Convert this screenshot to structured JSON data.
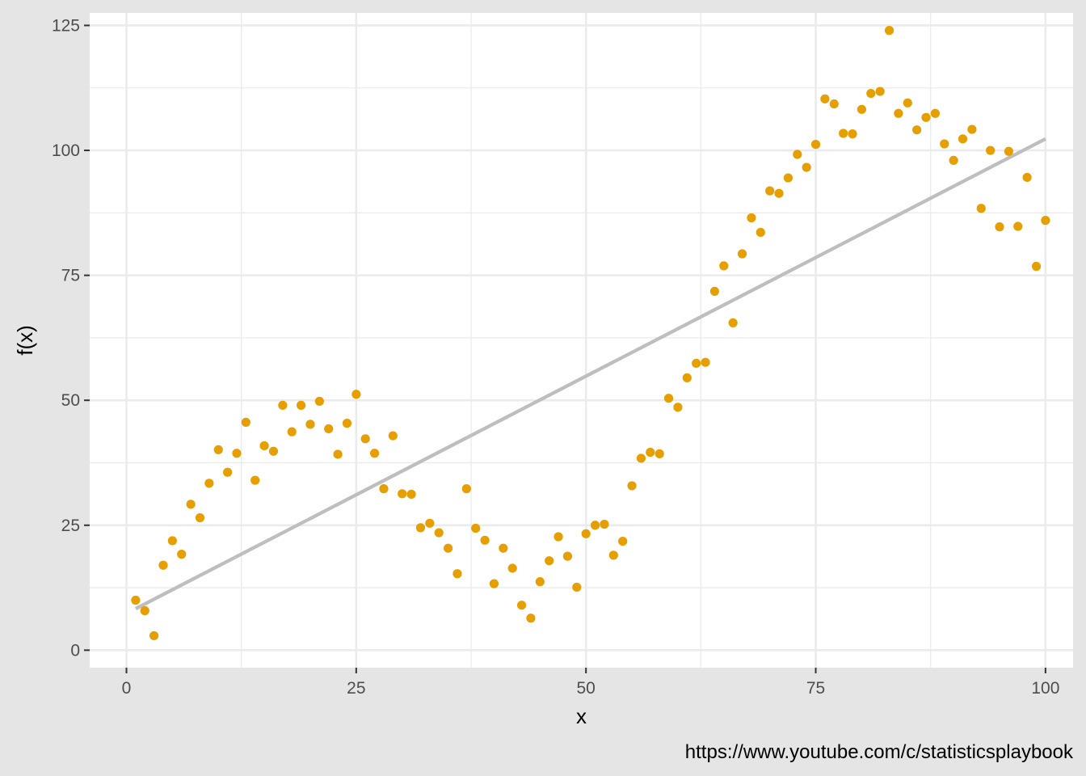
{
  "chart_data": {
    "type": "scatter",
    "title": "",
    "xlabel": "x",
    "ylabel": "f(x)",
    "caption": "https://www.youtube.com/c/statisticsplaybook",
    "xlim": [
      -4,
      103
    ],
    "ylim": [
      -3.5,
      127.5
    ],
    "x_ticks": [
      0,
      25,
      50,
      75,
      100
    ],
    "y_ticks": [
      0,
      25,
      50,
      75,
      100,
      125
    ],
    "grid": true,
    "legend": "none",
    "colors": {
      "points": "#e69f00",
      "fit_line": "#bebebe",
      "panel": "#ffffff",
      "grid": "#ebebeb",
      "background": "#e5e5e5"
    },
    "series": [
      {
        "type": "scatter",
        "x": [
          1,
          2,
          3,
          4,
          5,
          6,
          7,
          8,
          9,
          10,
          11,
          12,
          13,
          14,
          15,
          16,
          17,
          18,
          19,
          20,
          21,
          22,
          23,
          24,
          25,
          26,
          27,
          28,
          29,
          30,
          31,
          32,
          33,
          34,
          35,
          36,
          37,
          38,
          39,
          40,
          41,
          42,
          43,
          44,
          45,
          46,
          47,
          48,
          49,
          50,
          51,
          52,
          53,
          54,
          55,
          56,
          57,
          58,
          59,
          60,
          61,
          62,
          63,
          64,
          65,
          66,
          67,
          68,
          69,
          70,
          71,
          72,
          73,
          74,
          75,
          76,
          77,
          78,
          79,
          80,
          81,
          82,
          83,
          84,
          85,
          86,
          87,
          88,
          89,
          90,
          91,
          92,
          93,
          94,
          95,
          96,
          97,
          98,
          99,
          100
        ],
        "y": [
          10.0,
          7.9,
          2.9,
          17.0,
          21.9,
          19.2,
          29.2,
          26.5,
          33.4,
          40.1,
          35.6,
          39.4,
          45.6,
          34.0,
          40.9,
          39.8,
          49.0,
          43.7,
          49.0,
          45.2,
          49.8,
          44.3,
          39.2,
          45.4,
          51.2,
          42.3,
          39.4,
          32.3,
          42.9,
          31.3,
          31.2,
          24.5,
          25.4,
          23.5,
          20.4,
          15.3,
          32.3,
          24.4,
          22.0,
          13.3,
          20.4,
          16.4,
          9.0,
          6.4,
          13.7,
          17.9,
          22.7,
          18.8,
          12.6,
          23.3,
          25.0,
          25.2,
          19.0,
          21.8,
          32.9,
          38.4,
          39.6,
          39.3,
          50.4,
          48.6,
          54.5,
          57.4,
          57.6,
          71.8,
          76.9,
          65.5,
          79.3,
          86.5,
          83.6,
          91.9,
          91.4,
          94.5,
          99.2,
          96.6,
          101.2,
          110.3,
          109.3,
          103.4,
          103.3,
          108.2,
          111.4,
          111.8,
          124.0,
          107.4,
          109.5,
          104.1,
          106.6,
          107.4,
          101.3,
          98.0,
          102.3,
          104.2,
          88.4,
          100.0,
          84.7,
          99.8,
          84.8,
          94.6,
          76.8,
          86.0
        ]
      },
      {
        "type": "line",
        "x": [
          1,
          100
        ],
        "y": [
          8.3,
          102.3
        ]
      }
    ]
  }
}
